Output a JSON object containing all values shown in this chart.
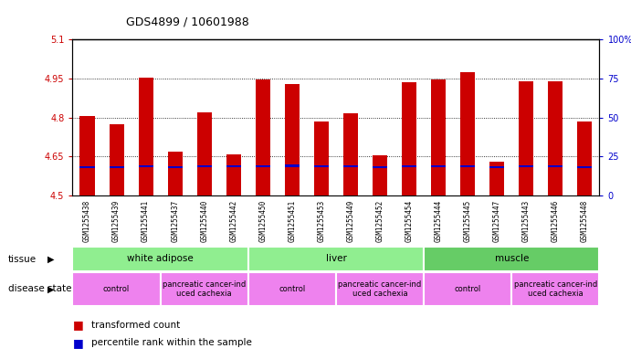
{
  "title": "GDS4899 / 10601988",
  "samples": [
    "GSM1255438",
    "GSM1255439",
    "GSM1255441",
    "GSM1255437",
    "GSM1255440",
    "GSM1255442",
    "GSM1255450",
    "GSM1255451",
    "GSM1255453",
    "GSM1255449",
    "GSM1255452",
    "GSM1255454",
    "GSM1255444",
    "GSM1255445",
    "GSM1255447",
    "GSM1255443",
    "GSM1255446",
    "GSM1255448"
  ],
  "bar_heights": [
    4.805,
    4.775,
    4.955,
    4.67,
    4.82,
    4.66,
    4.945,
    4.928,
    4.785,
    4.818,
    4.655,
    4.935,
    4.945,
    4.975,
    4.63,
    4.938,
    4.938,
    4.785
  ],
  "blue_positions": [
    4.606,
    4.606,
    4.61,
    4.606,
    4.608,
    4.608,
    4.61,
    4.611,
    4.61,
    4.61,
    4.606,
    4.61,
    4.61,
    4.61,
    4.606,
    4.61,
    4.61,
    4.606
  ],
  "blue_heights": [
    0.008,
    0.008,
    0.008,
    0.008,
    0.008,
    0.008,
    0.008,
    0.008,
    0.008,
    0.008,
    0.008,
    0.008,
    0.008,
    0.008,
    0.008,
    0.008,
    0.008,
    0.008
  ],
  "bar_color": "#cc0000",
  "blue_color": "#0000cc",
  "ymin": 4.5,
  "ymax": 5.1,
  "yticks": [
    4.5,
    4.65,
    4.8,
    4.95,
    5.1
  ],
  "ytick_labels": [
    "4.5",
    "4.65",
    "4.8",
    "4.95",
    "5.1"
  ],
  "right_yticks_pct": [
    0,
    25,
    50,
    75,
    100
  ],
  "right_ytick_labels": [
    "0",
    "25",
    "50",
    "75",
    "100%"
  ],
  "tissue_groups": [
    {
      "label": "white adipose",
      "start": 0,
      "end": 6,
      "color": "#90ee90"
    },
    {
      "label": "liver",
      "start": 6,
      "end": 12,
      "color": "#90ee90"
    },
    {
      "label": "muscle",
      "start": 12,
      "end": 18,
      "color": "#66cc66"
    }
  ],
  "disease_groups": [
    {
      "label": "control",
      "start": 0,
      "end": 3,
      "color": "#ee82ee"
    },
    {
      "label": "pancreatic cancer-ind\nuced cachexia",
      "start": 3,
      "end": 6,
      "color": "#ee82ee"
    },
    {
      "label": "control",
      "start": 6,
      "end": 9,
      "color": "#ee82ee"
    },
    {
      "label": "pancreatic cancer-ind\nuced cachexia",
      "start": 9,
      "end": 12,
      "color": "#ee82ee"
    },
    {
      "label": "control",
      "start": 12,
      "end": 15,
      "color": "#ee82ee"
    },
    {
      "label": "pancreatic cancer-ind\nuced cachexia",
      "start": 15,
      "end": 18,
      "color": "#ee82ee"
    }
  ],
  "bar_width": 0.5,
  "background_color": "#ffffff",
  "ylabel_color": "#cc0000",
  "right_ylabel_color": "#0000cc",
  "xtick_bg_color": "#cccccc"
}
